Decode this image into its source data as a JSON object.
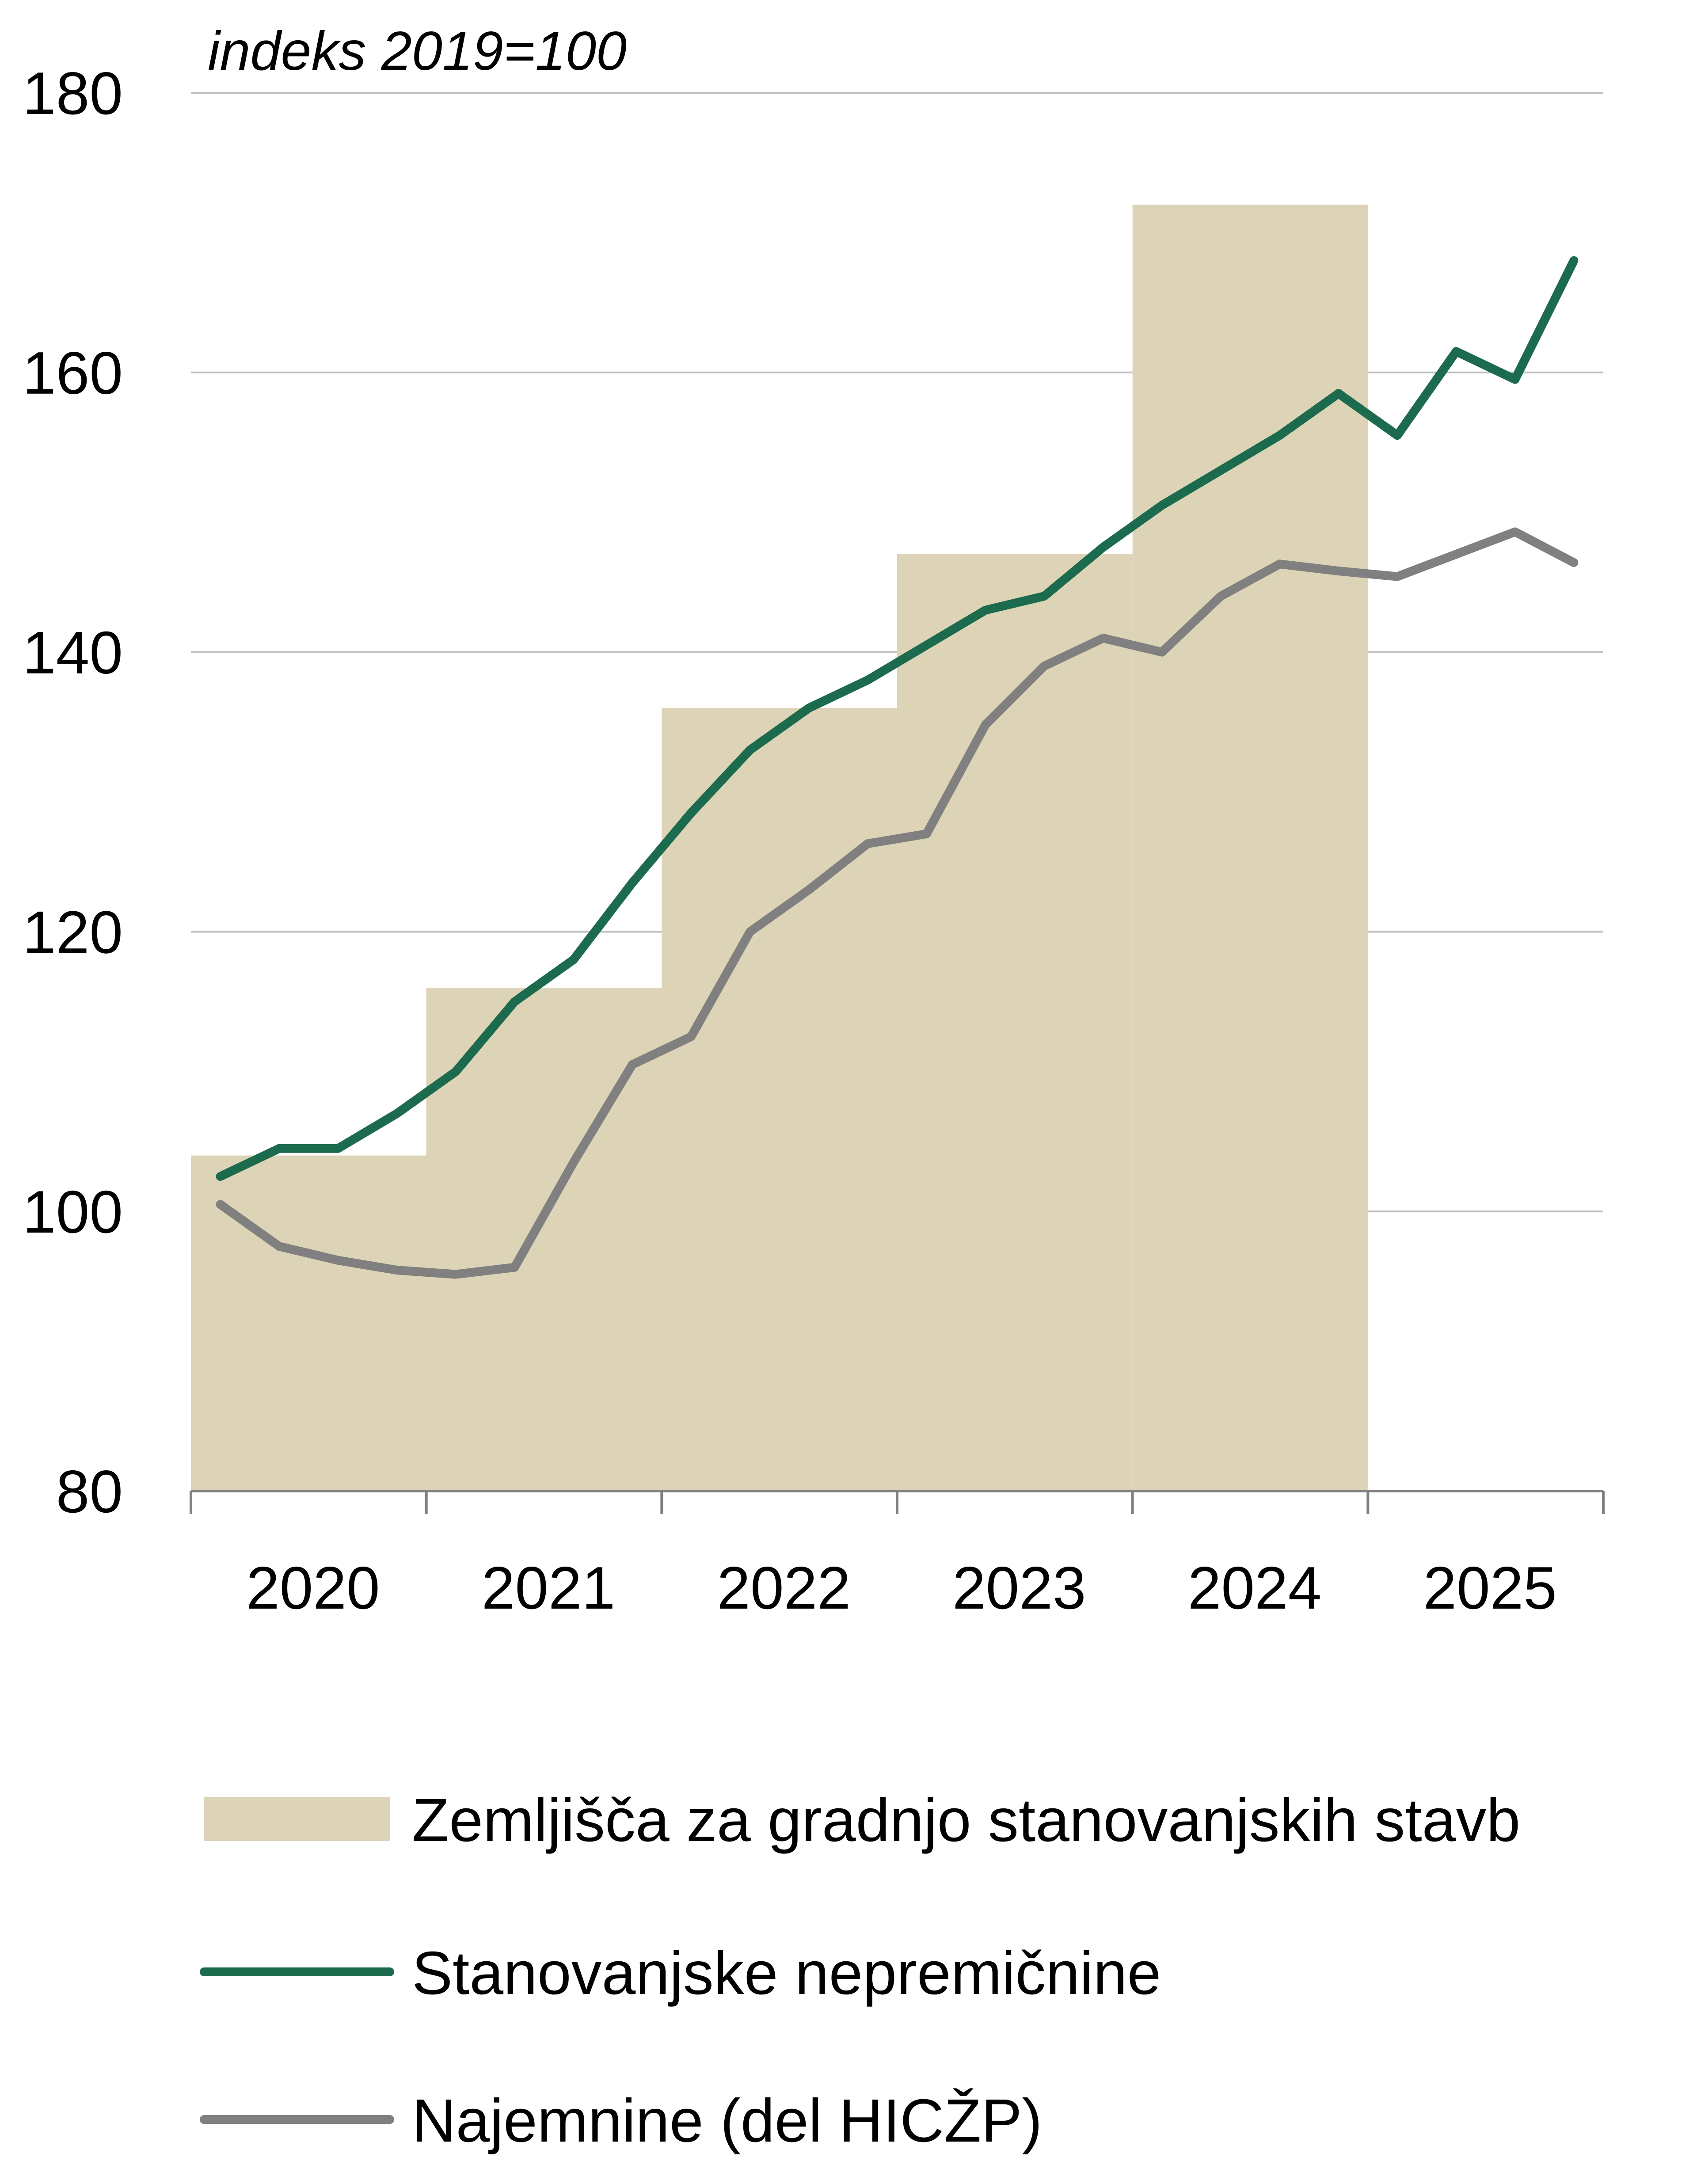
{
  "chart_data": {
    "type": "bar+line",
    "unit_note": "indeks 2019=100",
    "ylim": [
      80,
      180
    ],
    "yticks": [
      "80",
      "100",
      "120",
      "140",
      "160",
      "180"
    ],
    "categories": [
      "2020",
      "2021",
      "2022",
      "2023",
      "2024",
      "2025"
    ],
    "grid": true,
    "legend_position": "bottom",
    "bar_series": {
      "name": "Zemljišča za gradnjo stanovanjskih stavb",
      "color": "#DDD3B6",
      "values": [
        104,
        116,
        136,
        147,
        172,
        null
      ]
    },
    "line_series": [
      {
        "name": "Stanovanjske nepremičnine",
        "color": "#1C6B4E",
        "x": [
          "2020Q1",
          "2020Q2",
          "2020Q3",
          "2020Q4",
          "2021Q1",
          "2021Q2",
          "2021Q3",
          "2021Q4",
          "2022Q1",
          "2022Q2",
          "2022Q3",
          "2022Q4",
          "2023Q1",
          "2023Q2",
          "2023Q3",
          "2023Q4",
          "2024Q1",
          "2024Q2",
          "2024Q3",
          "2024Q4",
          "2025Q1",
          "2025Q2",
          "2025Q3",
          "2025Q4"
        ],
        "values": [
          102.5,
          104.5,
          104.5,
          107,
          110,
          115,
          118,
          123.5,
          128.5,
          133,
          136,
          138,
          140.5,
          143,
          144,
          147.5,
          150.5,
          153,
          155.5,
          158.5,
          155.5,
          161.5,
          159.5,
          168
        ]
      },
      {
        "name": "Najemnine (del HICŽP)",
        "color": "#808080",
        "x": [
          "2020Q1",
          "2020Q2",
          "2020Q3",
          "2020Q4",
          "2021Q1",
          "2021Q2",
          "2021Q3",
          "2021Q4",
          "2022Q1",
          "2022Q2",
          "2022Q3",
          "2022Q4",
          "2023Q1",
          "2023Q2",
          "2023Q3",
          "2023Q4",
          "2024Q1",
          "2024Q2",
          "2024Q3",
          "2024Q4",
          "2025Q1",
          "2025Q2",
          "2025Q3",
          "2025Q4"
        ],
        "values": [
          100.5,
          97.5,
          96.5,
          95.8,
          95.5,
          96,
          103.5,
          110.5,
          112.5,
          120,
          123,
          126.3,
          127,
          134.8,
          139,
          141,
          140,
          144,
          146.3,
          145.8,
          145.4,
          147,
          148.6,
          146.4
        ]
      }
    ]
  }
}
